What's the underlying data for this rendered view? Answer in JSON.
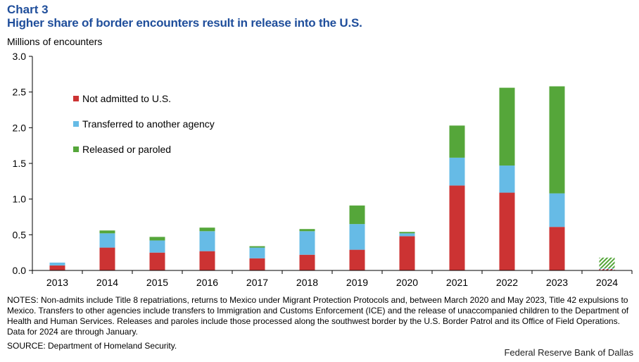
{
  "header": {
    "chart_number": "Chart 3",
    "title": "Higher share of border encounters result in release into the U.S.",
    "units": "Millions of encounters"
  },
  "colors": {
    "not_admitted": "#cc3333",
    "transferred": "#66bbe6",
    "released": "#55a63a"
  },
  "chart_data": {
    "type": "bar",
    "stacked": true,
    "categories": [
      "2013",
      "2014",
      "2015",
      "2016",
      "2017",
      "2018",
      "2019",
      "2020",
      "2021",
      "2022",
      "2023",
      "2024"
    ],
    "series": [
      {
        "name": "Not admitted to U.S.",
        "color": "#cc3333",
        "values": [
          0.07,
          0.32,
          0.25,
          0.27,
          0.17,
          0.22,
          0.29,
          0.48,
          1.19,
          1.09,
          0.61,
          0.02
        ]
      },
      {
        "name": "Transferred to another agency",
        "color": "#66bbe6",
        "values": [
          0.04,
          0.2,
          0.17,
          0.28,
          0.15,
          0.33,
          0.36,
          0.04,
          0.39,
          0.38,
          0.47,
          0.01
        ]
      },
      {
        "name": "Released or paroled",
        "color": "#55a63a",
        "values": [
          0.0,
          0.04,
          0.05,
          0.05,
          0.02,
          0.03,
          0.26,
          0.02,
          0.45,
          1.09,
          1.5,
          0.15
        ]
      }
    ],
    "partial_categories": [
      "2024"
    ],
    "ylim": [
      0,
      3.0
    ],
    "yticks": [
      "0.0",
      "0.5",
      "1.0",
      "1.5",
      "2.0",
      "2.5",
      "3.0"
    ],
    "ylabel": "Millions of encounters",
    "grid": false,
    "legend_position": "top-left"
  },
  "footer": {
    "notes": "NOTES: Non-admits include Title 8 repatriations, returns to Mexico under Migrant Protection Protocols and, between March 2020 and May 2023, Title 42 expulsions to Mexico. Transfers to other agencies include transfers to Immigration and Customs Enforcement (ICE) and the release of unaccompanied children to the Department of Health and Human Services. Releases and paroles include those processed along the southwest border by the U.S. Border Patrol and its Office of Field Operations. Data for 2024 are through January.",
    "source": "SOURCE: Department of Homeland Security.",
    "credit": "Federal Reserve Bank of Dallas"
  }
}
